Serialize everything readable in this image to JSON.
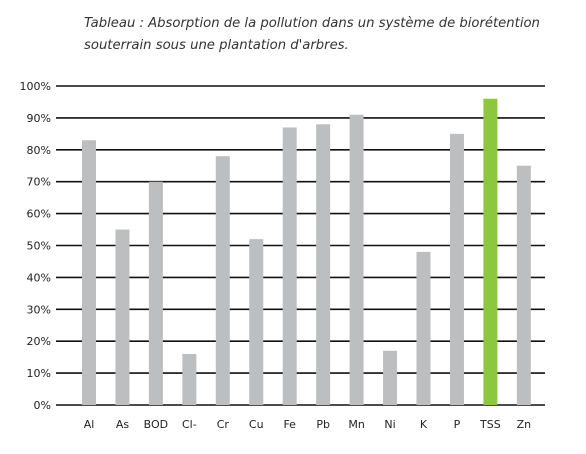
{
  "chart_data": {
    "type": "bar",
    "title": "Tableau : Absorption de la pollution dans un système de biorétention souterrain sous une plantation d'arbres.",
    "categories": [
      "Al",
      "As",
      "BOD",
      "Cl-",
      "Cr",
      "Cu",
      "Fe",
      "Pb",
      "Mn",
      "Ni",
      "K",
      "P",
      "TSS",
      "Zn"
    ],
    "values": [
      83,
      55,
      70,
      16,
      78,
      52,
      87,
      88,
      91,
      17,
      48,
      85,
      96,
      75
    ],
    "ylim": [
      0,
      100
    ],
    "yticks": [
      "0%",
      "10%",
      "20%",
      "30%",
      "40%",
      "50%",
      "60%",
      "70%",
      "80%",
      "90%",
      "100%"
    ],
    "xlabel": "",
    "ylabel": "",
    "grid": true,
    "colors": {
      "default_bar": "#bdbec0",
      "highlight_bar": "#8dc63f",
      "gridline": "#111111"
    },
    "highlight_category": "TSS"
  }
}
